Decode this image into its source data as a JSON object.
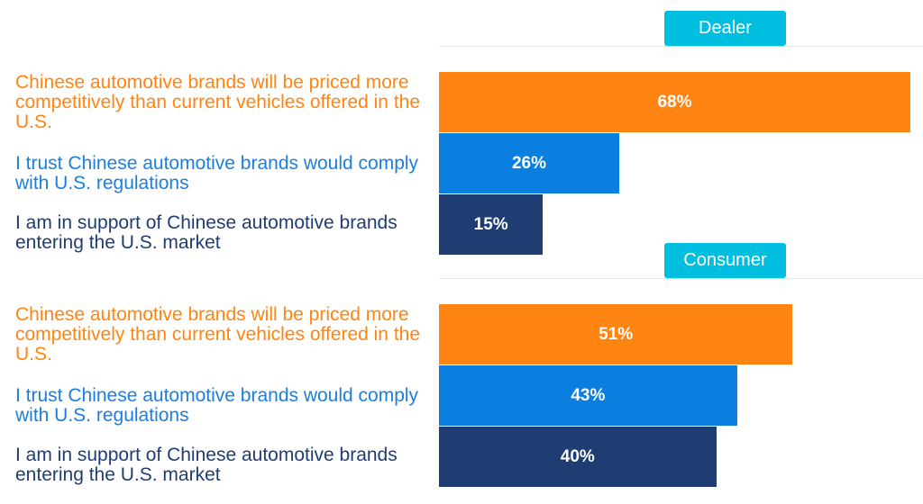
{
  "chart_data": {
    "type": "bar",
    "orientation": "horizontal",
    "unit": "%",
    "xlim": [
      0,
      100
    ],
    "grid": false,
    "categories": [
      "Chinese automotive brands will be priced more competitively than current vehicles offered in the U.S.",
      "I trust Chinese automotive brands would comply with U.S. regulations",
      "I am in support of Chinese automotive brands entering the U.S. market"
    ],
    "category_colors": [
      "#ff8412",
      "#0b7fe0",
      "#1f3d73"
    ],
    "label_colors": [
      "#ff8412",
      "#1a7fe0",
      "#1f3d73"
    ],
    "panels": [
      {
        "title": "Dealer",
        "values": [
          68,
          26,
          15
        ],
        "value_labels": [
          "68%",
          "26%",
          "15%"
        ]
      },
      {
        "title": "Consumer",
        "values": [
          51,
          43,
          40
        ],
        "value_labels": [
          "51%",
          "43%",
          "40%"
        ]
      }
    ],
    "title_color": "#00bee0"
  }
}
